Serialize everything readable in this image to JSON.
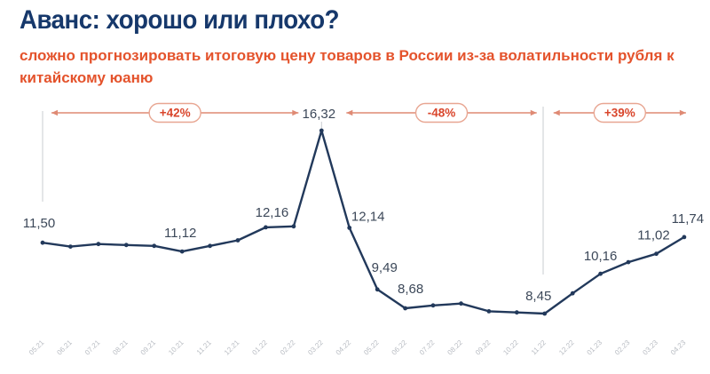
{
  "header": {
    "title": "Аванс: хорошо или плохо?",
    "subtitle": "сложно прогнозировать итоговую цену товаров в России из-за волатильности рубля к китайскому юаню"
  },
  "colors": {
    "title": "#16386B",
    "subtitle": "#E4532C",
    "line": "#22395B",
    "point_label": "#3C4859",
    "accent_text": "#D9452B",
    "arrow": "#DF8A74",
    "pill_border": "#E8A692",
    "pill_fill": "#FFFFFF",
    "axis_label": "#A6ABB3",
    "guide": "#C9CCD1"
  },
  "chart_data": {
    "type": "line",
    "title": "Аванс: хорошо или плохо?",
    "xlabel": "",
    "ylabel": "",
    "legend_position": "none",
    "grid": false,
    "ylim": [
      8.2,
      16.8
    ],
    "x_tick_rotation": -45,
    "x": [
      "05.21",
      "06.21",
      "07.21",
      "08.21",
      "09.21",
      "10.21",
      "11.21",
      "12.21",
      "01.22",
      "02.22",
      "03.22",
      "04.22",
      "05.22",
      "06.22",
      "07.22",
      "08.22",
      "09.22",
      "10.22",
      "11.22",
      "12.22",
      "01.23",
      "02.23",
      "03.23",
      "04.23"
    ],
    "series": [
      {
        "name": "",
        "values": [
          11.5,
          11.33,
          11.44,
          11.4,
          11.36,
          11.12,
          11.36,
          11.6,
          12.16,
          12.2,
          16.32,
          12.14,
          9.49,
          8.68,
          8.8,
          8.88,
          8.55,
          8.5,
          8.45,
          9.32,
          10.16,
          10.66,
          11.02,
          11.74
        ]
      }
    ],
    "point_labels": {
      "0": "11,50",
      "5": "11,12",
      "8": "12,16",
      "10": "16,32",
      "11": "12,14",
      "12": "9,49",
      "13": "8,68",
      "18": "8,45",
      "20": "10,16",
      "22": "11,02",
      "23": "11,74"
    },
    "annotations": [
      {
        "label": "+42%",
        "from": 0,
        "to": 10
      },
      {
        "label": "-48%",
        "from": 10,
        "to": 18
      },
      {
        "label": "+39%",
        "from": 18,
        "to": 23
      }
    ]
  }
}
